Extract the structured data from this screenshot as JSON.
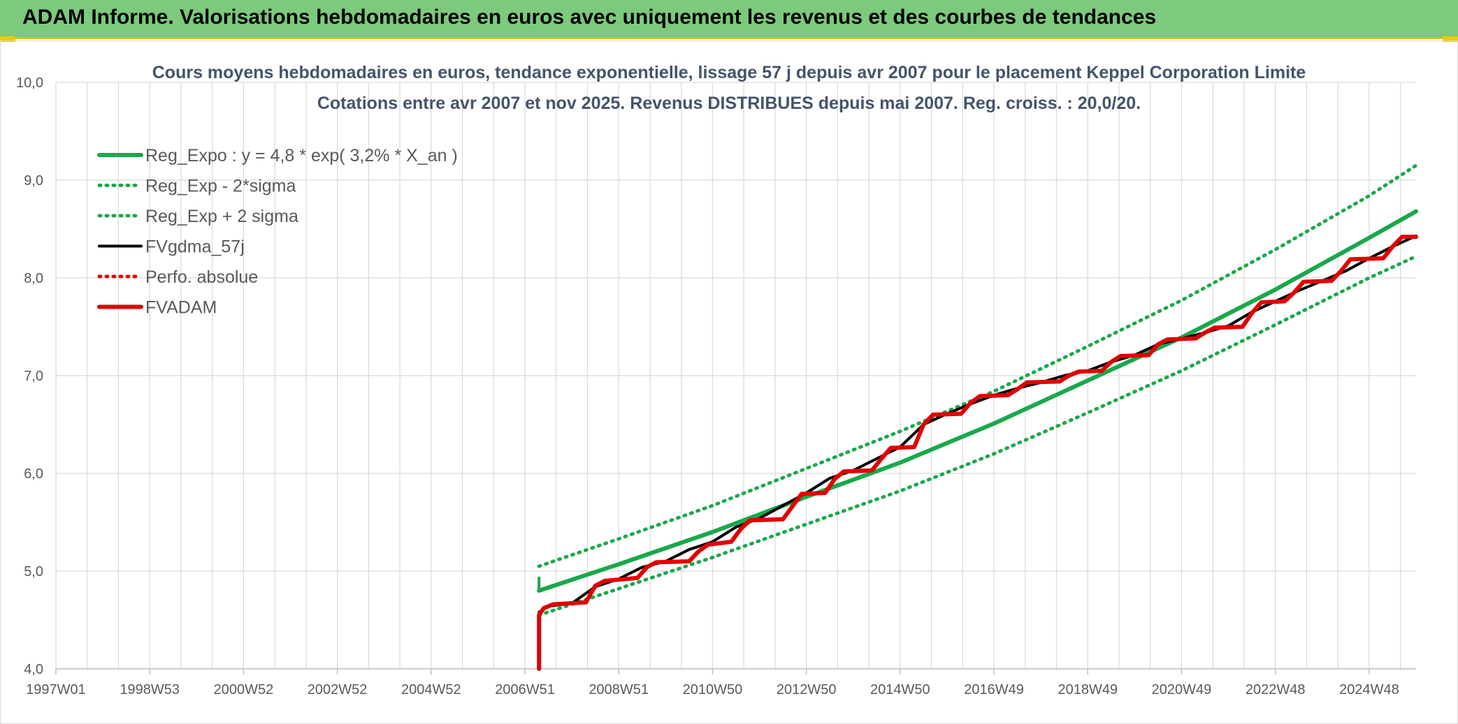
{
  "banner": {
    "title": "ADAM Informe. Valorisations hebdomadaires en euros avec uniquement les revenus et des courbes de tendances"
  },
  "chart_data": {
    "type": "line",
    "title": "Cours moyens hebdomadaires en euros, tendance exponentielle, lissage 57 j depuis avr 2007 pour le placement Keppel Corporation Limite",
    "subtitle": "Cotations entre avr 2007 et nov 2025. Revenus DISTRIBUES depuis mai 2007. Reg. croiss. : 20,0/20.",
    "xlabel": "",
    "ylabel": "",
    "ylim": [
      4.0,
      10.0
    ],
    "xlim": [
      1997.0,
      2026.0
    ],
    "y_ticks": [
      "4,0",
      "5,0",
      "6,0",
      "7,0",
      "8,0",
      "9,0",
      "10,0"
    ],
    "x_ticks": [
      {
        "label": "1997W01",
        "x": 1997.0
      },
      {
        "label": "1998W53",
        "x": 1999.0
      },
      {
        "label": "2000W52",
        "x": 2001.0
      },
      {
        "label": "2002W52",
        "x": 2003.0
      },
      {
        "label": "2004W52",
        "x": 2005.0
      },
      {
        "label": "2006W51",
        "x": 2007.0
      },
      {
        "label": "2008W51",
        "x": 2009.0
      },
      {
        "label": "2010W50",
        "x": 2011.0
      },
      {
        "label": "2012W50",
        "x": 2013.0
      },
      {
        "label": "2014W50",
        "x": 2015.0
      },
      {
        "label": "2016W49",
        "x": 2017.0
      },
      {
        "label": "2018W49",
        "x": 2019.0
      },
      {
        "label": "2020W49",
        "x": 2021.0
      },
      {
        "label": "2022W48",
        "x": 2023.0
      },
      {
        "label": "2024W48",
        "x": 2025.0
      }
    ],
    "grid": true,
    "legend_position": "top-left",
    "series": [
      {
        "name": "Reg_Expo : y = 4,8 * exp( 3,2% *  X_an )",
        "color": "#1aa84b",
        "style": "solid-thick",
        "x": [
          2007.3,
          2009,
          2011,
          2013,
          2015,
          2017,
          2019,
          2021,
          2023,
          2025,
          2026.0
        ],
        "y": [
          4.8,
          5.07,
          5.4,
          5.76,
          6.11,
          6.51,
          6.95,
          7.39,
          7.88,
          8.41,
          8.68
        ]
      },
      {
        "name": "Reg_Exp - 2*sigma",
        "color": "#1aa84b",
        "style": "dotted",
        "x": [
          2007.3,
          2009,
          2011,
          2013,
          2015,
          2017,
          2019,
          2021,
          2023,
          2025,
          2026.0
        ],
        "y": [
          4.55,
          4.82,
          5.14,
          5.48,
          5.82,
          6.2,
          6.62,
          7.05,
          7.52,
          8.0,
          8.22
        ]
      },
      {
        "name": "Reg_Exp + 2 sigma",
        "color": "#1aa84b",
        "style": "dotted",
        "x": [
          2007.3,
          2009,
          2011,
          2013,
          2015,
          2017,
          2019,
          2021,
          2023,
          2025,
          2026.0
        ],
        "y": [
          5.05,
          5.33,
          5.67,
          6.05,
          6.43,
          6.84,
          7.3,
          7.77,
          8.29,
          8.84,
          9.15
        ]
      },
      {
        "name": "FVgdma_57j",
        "color": "#000000",
        "style": "solid",
        "x": [
          2007.3,
          2007.5,
          2008.0,
          2008.5,
          2009.0,
          2009.5,
          2010.0,
          2010.5,
          2011.0,
          2011.5,
          2012.0,
          2012.5,
          2013.0,
          2013.5,
          2014.0,
          2014.5,
          2015.0,
          2015.5,
          2016.0,
          2016.5,
          2017.0,
          2017.5,
          2018.0,
          2018.5,
          2019.0,
          2019.5,
          2020.0,
          2020.5,
          2021.0,
          2021.5,
          2022.0,
          2022.5,
          2023.0,
          2023.5,
          2024.0,
          2024.5,
          2025.0,
          2025.5,
          2026.0
        ],
        "y": [
          4.58,
          4.64,
          4.67,
          4.84,
          4.92,
          5.04,
          5.1,
          5.22,
          5.3,
          5.45,
          5.54,
          5.67,
          5.8,
          5.95,
          6.03,
          6.15,
          6.27,
          6.5,
          6.61,
          6.71,
          6.8,
          6.87,
          6.93,
          7.0,
          7.05,
          7.14,
          7.21,
          7.32,
          7.38,
          7.44,
          7.51,
          7.65,
          7.76,
          7.87,
          7.97,
          8.07,
          8.2,
          8.32,
          8.43
        ]
      },
      {
        "name": "Perfo. absolue",
        "color": "#e00000",
        "style": "dotted",
        "x": [],
        "y": []
      },
      {
        "name": "FVADAM",
        "color": "#e00000",
        "style": "step-thick",
        "x": [
          2007.3,
          2007.3,
          2007.4,
          2007.6,
          2008.3,
          2008.5,
          2008.7,
          2009.4,
          2009.6,
          2009.8,
          2010.5,
          2010.7,
          2010.9,
          2011.4,
          2011.6,
          2011.8,
          2012.5,
          2012.7,
          2012.9,
          2013.4,
          2013.6,
          2013.8,
          2014.4,
          2014.6,
          2014.8,
          2015.3,
          2015.5,
          2015.7,
          2016.3,
          2016.5,
          2016.7,
          2017.3,
          2017.5,
          2017.7,
          2018.4,
          2018.6,
          2018.8,
          2019.3,
          2019.5,
          2019.7,
          2020.3,
          2020.5,
          2020.7,
          2021.3,
          2021.5,
          2021.7,
          2022.3,
          2022.5,
          2022.7,
          2023.2,
          2023.4,
          2023.6,
          2024.2,
          2024.4,
          2024.6,
          2025.3,
          2025.5,
          2025.7,
          2026.0
        ],
        "y": [
          4.0,
          4.55,
          4.62,
          4.66,
          4.68,
          4.85,
          4.9,
          4.93,
          5.04,
          5.09,
          5.1,
          5.2,
          5.27,
          5.3,
          5.43,
          5.52,
          5.53,
          5.66,
          5.79,
          5.8,
          5.94,
          6.02,
          6.03,
          6.15,
          6.26,
          6.27,
          6.5,
          6.6,
          6.61,
          6.72,
          6.79,
          6.8,
          6.86,
          6.93,
          6.94,
          7.0,
          7.04,
          7.05,
          7.14,
          7.2,
          7.21,
          7.32,
          7.37,
          7.38,
          7.44,
          7.49,
          7.5,
          7.64,
          7.75,
          7.76,
          7.85,
          7.96,
          7.97,
          8.07,
          8.19,
          8.2,
          8.32,
          8.42,
          8.42
        ]
      }
    ]
  }
}
